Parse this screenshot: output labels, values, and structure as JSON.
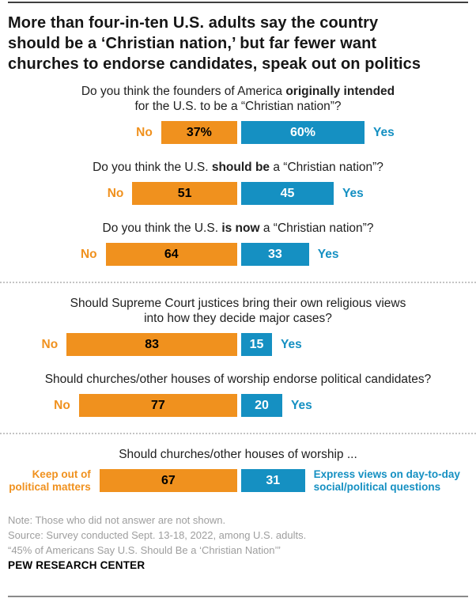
{
  "header": {
    "title_lines": [
      "More than four-in-ten U.S. adults say the country",
      "should be a ‘Christian nation,’ but far fewer want",
      "churches to endorse candidates, speak out on politics"
    ]
  },
  "colors": {
    "no_bar": "#F0911E",
    "yes_bar": "#1590C2",
    "divider": "#c4c4c4",
    "footnote_gray": "#9e9e9e"
  },
  "chart_data": {
    "type": "bar",
    "orientation": "horizontal",
    "subtype": "diverging-paired-no-yes",
    "unit": "%",
    "dividers_after": [
      2,
      4
    ],
    "questions": [
      {
        "question_lines": [
          [
            {
              "text": "Do you think the founders of America ",
              "bold": false
            },
            {
              "text": "originally intended",
              "bold": true
            }
          ],
          [
            {
              "text": "for the U.S. to be a “Christian nation”?",
              "bold": false
            }
          ]
        ],
        "no": {
          "label_lines": [
            "No"
          ],
          "value": 37,
          "display": "37%"
        },
        "yes": {
          "label_lines": [
            "Yes"
          ],
          "value": 60,
          "display": "60%"
        }
      },
      {
        "question_lines": [
          [
            {
              "text": "Do you think the U.S. ",
              "bold": false
            },
            {
              "text": "should be",
              "bold": true
            },
            {
              "text": " a “Christian nation”?",
              "bold": false
            }
          ]
        ],
        "no": {
          "label_lines": [
            "No"
          ],
          "value": 51,
          "display": "51"
        },
        "yes": {
          "label_lines": [
            "Yes"
          ],
          "value": 45,
          "display": "45"
        }
      },
      {
        "question_lines": [
          [
            {
              "text": "Do you think the U.S. ",
              "bold": false
            },
            {
              "text": "is now",
              "bold": true
            },
            {
              "text": " a “Christian nation”?",
              "bold": false
            }
          ]
        ],
        "no": {
          "label_lines": [
            "No"
          ],
          "value": 64,
          "display": "64"
        },
        "yes": {
          "label_lines": [
            "Yes"
          ],
          "value": 33,
          "display": "33"
        }
      },
      {
        "question_lines": [
          [
            {
              "text": "Should Supreme Court justices bring their own religious views",
              "bold": false
            }
          ],
          [
            {
              "text": "into how they decide major cases?",
              "bold": false
            }
          ]
        ],
        "no": {
          "label_lines": [
            "No"
          ],
          "value": 83,
          "display": "83"
        },
        "yes": {
          "label_lines": [
            "Yes"
          ],
          "value": 15,
          "display": "15"
        }
      },
      {
        "question_lines": [
          [
            {
              "text": "Should churches/other houses of worship endorse political candidates?",
              "bold": false
            }
          ]
        ],
        "no": {
          "label_lines": [
            "No"
          ],
          "value": 77,
          "display": "77"
        },
        "yes": {
          "label_lines": [
            "Yes"
          ],
          "value": 20,
          "display": "20"
        }
      },
      {
        "question_lines": [
          [
            {
              "text": "Should churches/other houses of worship ...",
              "bold": false
            }
          ]
        ],
        "no": {
          "label_lines": [
            "Keep out of",
            "political matters"
          ],
          "value": 67,
          "display": "67"
        },
        "yes": {
          "label_lines": [
            "Express views on day-to-day",
            "social/political questions"
          ],
          "value": 31,
          "display": "31"
        }
      }
    ]
  },
  "footer": {
    "note": "Note: Those who did not answer are not shown.",
    "source": "Source: Survey conducted Sept. 13-18, 2022, among U.S. adults.",
    "report": "“45% of Americans Say U.S. Should Be a ‘Christian Nation’”",
    "org": "PEW RESEARCH CENTER"
  }
}
